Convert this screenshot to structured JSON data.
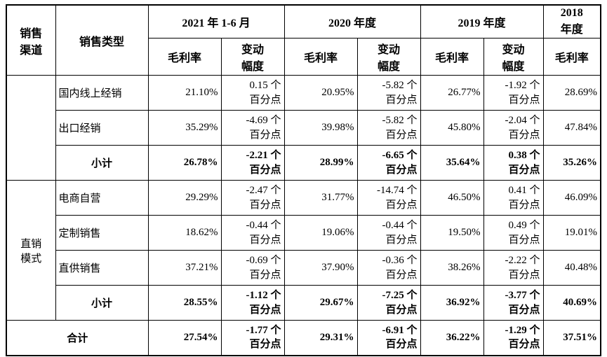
{
  "page": {
    "background": "#ffffff",
    "border_color": "#000000",
    "text_color": "#000000"
  },
  "header": {
    "channel": "销售渠道",
    "type": "销售类型",
    "period_2021": "2021 年 1-6 月",
    "period_2020": "2020 年度",
    "period_2019": "2019 年度",
    "period_2018": "2018 年度",
    "margin": "毛利率",
    "change": "变动幅度"
  },
  "channels": {
    "group1": "",
    "group2": "直销模式"
  },
  "rows": [
    {
      "label": "国内线上经销",
      "m1": "21.10%",
      "c1v": "0.15 个",
      "c1u": "百分点",
      "m2": "20.95%",
      "c2v": "-5.82 个",
      "c2u": "百分点",
      "m3": "26.77%",
      "c3v": "-1.92 个",
      "c3u": "百分点",
      "m4": "28.69%"
    },
    {
      "label": "出口经销",
      "m1": "35.29%",
      "c1v": "-4.69 个",
      "c1u": "百分点",
      "m2": "39.98%",
      "c2v": "-5.82 个",
      "c2u": "百分点",
      "m3": "45.80%",
      "c3v": "-2.04 个",
      "c3u": "百分点",
      "m4": "47.84%"
    },
    {
      "label": "小计",
      "m1": "26.78%",
      "c1v": "-2.21 个",
      "c1u": "百分点",
      "m2": "28.99%",
      "c2v": "-6.65 个",
      "c2u": "百分点",
      "m3": "35.64%",
      "c3v": "0.38 个",
      "c3u": "百分点",
      "m4": "35.26%"
    },
    {
      "label": "电商自营",
      "m1": "29.29%",
      "c1v": "-2.47 个",
      "c1u": "百分点",
      "m2": "31.77%",
      "c2v": "-14.74 个",
      "c2u": "百分点",
      "m3": "46.50%",
      "c3v": "0.41 个",
      "c3u": "百分点",
      "m4": "46.09%"
    },
    {
      "label": "定制销售",
      "m1": "18.62%",
      "c1v": "-0.44 个",
      "c1u": "百分点",
      "m2": "19.06%",
      "c2v": "-0.44 个",
      "c2u": "百分点",
      "m3": "19.50%",
      "c3v": "0.49 个",
      "c3u": "百分点",
      "m4": "19.01%"
    },
    {
      "label": "直供销售",
      "m1": "37.21%",
      "c1v": "-0.69 个",
      "c1u": "百分点",
      "m2": "37.90%",
      "c2v": "-0.36 个",
      "c2u": "百分点",
      "m3": "38.26%",
      "c3v": "-2.22 个",
      "c3u": "百分点",
      "m4": "40.48%"
    },
    {
      "label": "小计",
      "m1": "28.55%",
      "c1v": "-1.12 个",
      "c1u": "百分点",
      "m2": "29.67%",
      "c2v": "-7.25 个",
      "c2u": "百分点",
      "m3": "36.92%",
      "c3v": "-3.77 个",
      "c3u": "百分点",
      "m4": "40.69%"
    },
    {
      "label": "合计",
      "m1": "27.54%",
      "c1v": "-1.77 个",
      "c1u": "百分点",
      "m2": "29.31%",
      "c2v": "-6.91 个",
      "c2u": "百分点",
      "m3": "36.22%",
      "c3v": "-1.29 个",
      "c3u": "百分点",
      "m4": "37.51%"
    }
  ]
}
